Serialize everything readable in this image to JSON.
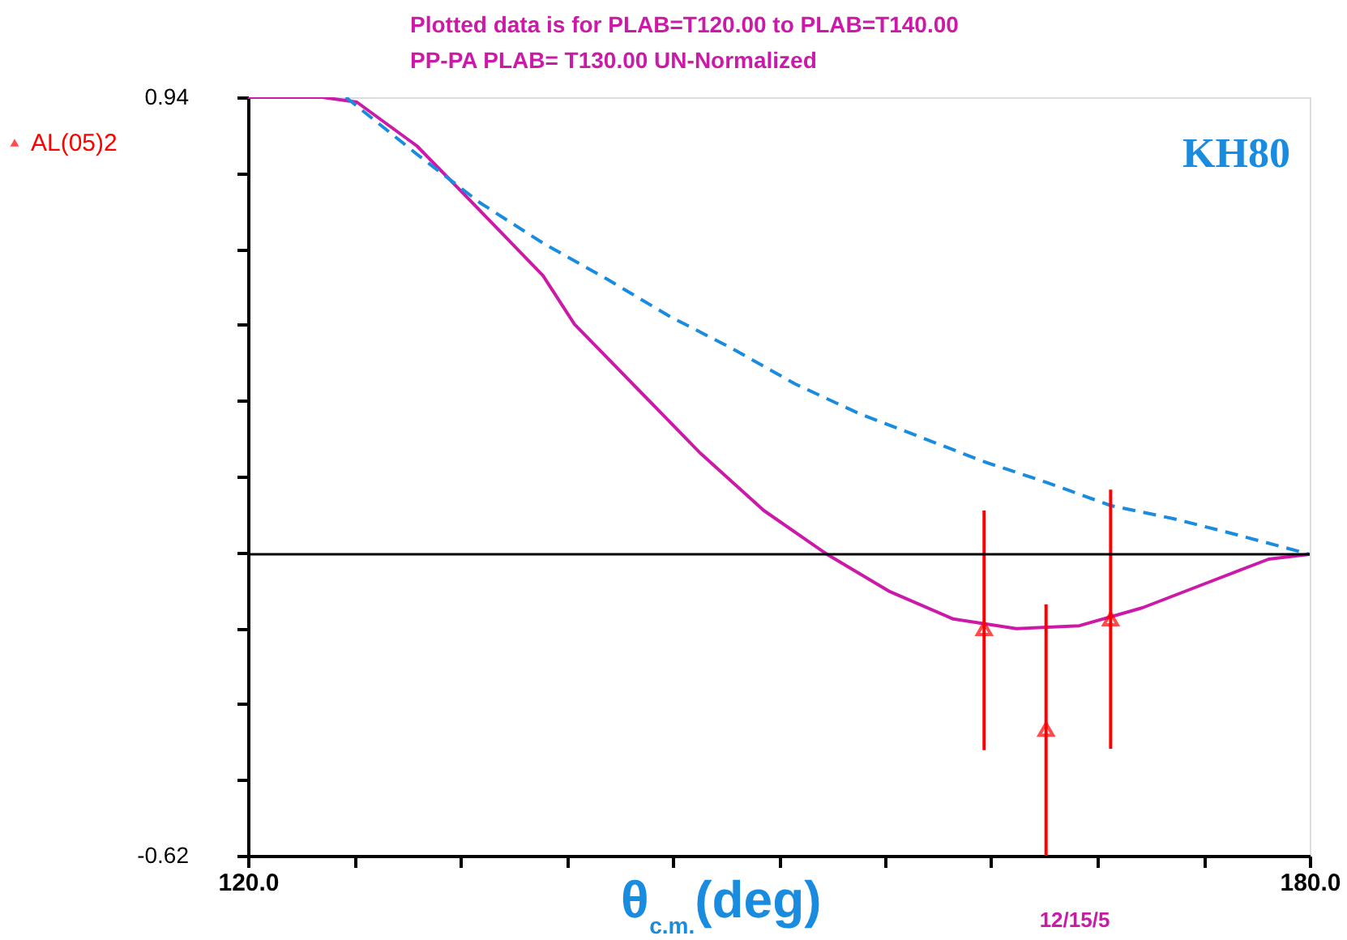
{
  "chart_data": {
    "type": "line",
    "title": "Plotted data is for PLAB=T120.00 to PLAB=T140.00",
    "subtitle": "PP-PA    PLAB= T130.00 UN-Normalized",
    "xlabel": "θ$_{c.m.}$(deg)",
    "xlim": [
      120,
      180
    ],
    "xticks": [
      {
        "value": 120,
        "label": "120.0"
      },
      {
        "value": 126,
        "label": null
      },
      {
        "value": 132,
        "label": null
      },
      {
        "value": 138,
        "label": null
      },
      {
        "value": 144,
        "label": null
      },
      {
        "value": 150,
        "label": null
      },
      {
        "value": 156,
        "label": null
      },
      {
        "value": 162,
        "label": null
      },
      {
        "value": 168,
        "label": null
      },
      {
        "value": 174,
        "label": null
      },
      {
        "value": 180,
        "label": "180.0"
      }
    ],
    "ylim": [
      -0.62,
      0.94
    ],
    "yticks": [
      {
        "value": 0.94,
        "label": "0.94"
      },
      {
        "value": 0.784,
        "label": null
      },
      {
        "value": 0.628,
        "label": null
      },
      {
        "value": 0.472,
        "label": null
      },
      {
        "value": 0.316,
        "label": null
      },
      {
        "value": 0.16,
        "label": null
      },
      {
        "value": 0.004,
        "label": null
      },
      {
        "value": -0.152,
        "label": null
      },
      {
        "value": -0.308,
        "label": null
      },
      {
        "value": -0.464,
        "label": null
      },
      {
        "value": -0.62,
        "label": "-0.62"
      }
    ],
    "grid": false,
    "legend": "top left",
    "series": [
      {
        "color": "#cc1aa8",
        "line_style": "solid",
        "x": [
          120,
          124.19,
          126.15,
          129.54,
          133.11,
          136.67,
          138.45,
          142.02,
          145.59,
          149.15,
          152.72,
          156.28,
          159.85,
          163.42,
          166.98,
          170.55,
          174.11,
          177.68,
          180
        ],
        "values": [
          0.94,
          0.94,
          0.93,
          0.84,
          0.707,
          0.573,
          0.473,
          0.34,
          0.207,
          0.09,
          0.0,
          -0.077,
          -0.133,
          -0.153,
          -0.147,
          -0.11,
          -0.06,
          -0.01,
          0
        ]
      },
      {
        "name": "KH80",
        "color": "#1a8ce0",
        "line_style": "dashed",
        "x": [
          125.53,
          129.54,
          133.11,
          136.67,
          140.24,
          143.8,
          147.37,
          150.94,
          154.5,
          158.07,
          161.63,
          165.2,
          168.77,
          172.33,
          175.9,
          180
        ],
        "values": [
          0.94,
          0.823,
          0.723,
          0.64,
          0.567,
          0.49,
          0.423,
          0.35,
          0.29,
          0.24,
          0.19,
          0.147,
          0.1,
          0.073,
          0.04,
          0
        ]
      },
      {
        "name": "AL(05)2",
        "type": "scatter",
        "marker": "triangle",
        "color": "#ff0000",
        "x": [
          161.6,
          165.1,
          168.75
        ],
        "values": [
          -0.153,
          -0.36,
          -0.133
        ],
        "errors": [
          [
            -0.403,
            0.09
          ],
          [
            -0.62,
            -0.103
          ],
          [
            -0.4,
            0.133
          ]
        ]
      }
    ],
    "ref_lines": [
      {
        "axis": "y",
        "value": 0,
        "color": "#000000"
      }
    ],
    "annotations": [
      "12/15/5"
    ]
  }
}
